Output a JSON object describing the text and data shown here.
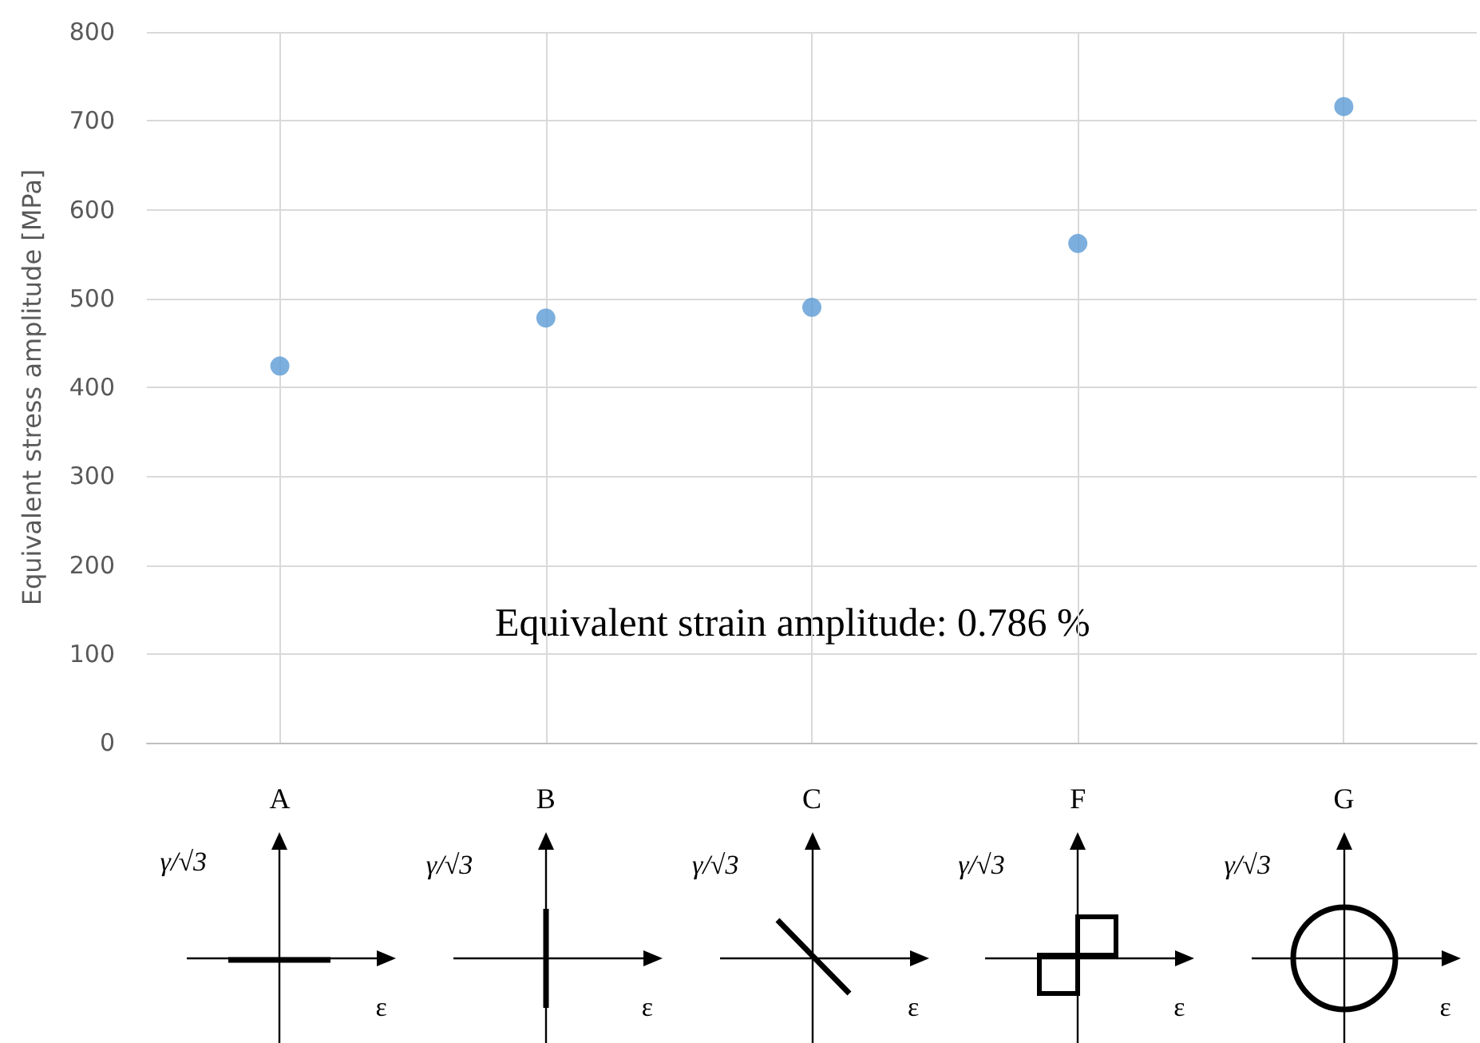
{
  "chart_data": {
    "type": "scatter",
    "ylabel": "Equivalent stress amplitude [MPa]",
    "categories": [
      "A",
      "B",
      "C",
      "F",
      "G"
    ],
    "series": [
      {
        "color": "#5b9bd5",
        "values": [
          424,
          478,
          490,
          562,
          716
        ]
      }
    ],
    "ylim": [
      0,
      800
    ],
    "yticks": [
      0,
      100,
      200,
      300,
      400,
      500,
      600,
      700,
      800
    ],
    "grid": true,
    "marker": "circle",
    "annotations": [
      "Equivalent strain amplitude: 0.786 %",
      "γ/√3",
      "ε",
      "γ/√3",
      "ε",
      "γ/√3",
      "ε",
      "γ/√3",
      "ε",
      "γ/√3",
      "ε"
    ]
  }
}
